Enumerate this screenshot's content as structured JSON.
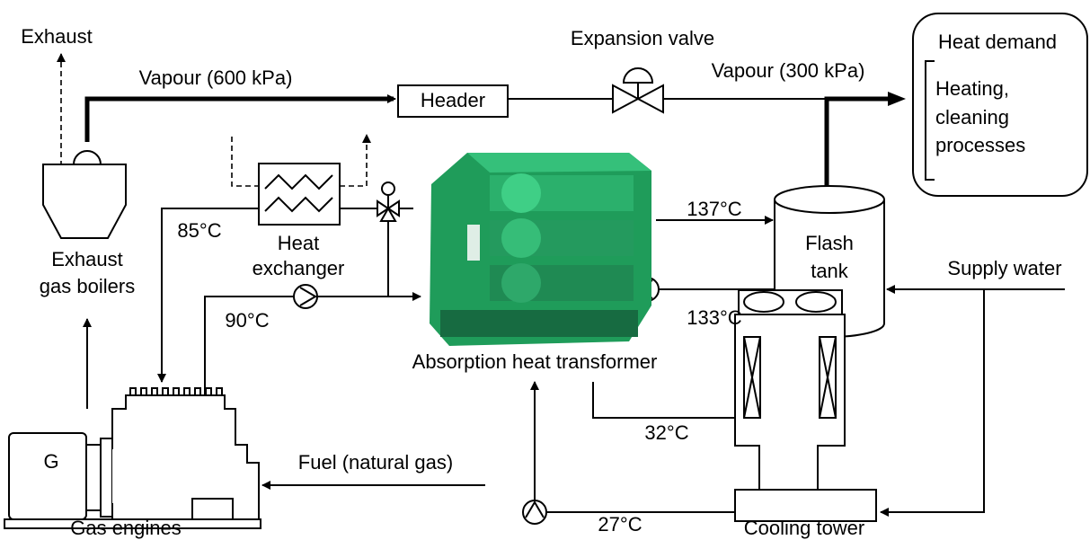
{
  "labels": {
    "exhaust": "Exhaust",
    "vapour_600": "Vapour (600 kPa)",
    "expansion_valve": "Expansion valve",
    "header": "Header",
    "vapour_300": "Vapour (300 kPa)",
    "heat_demand": "Heat demand",
    "heat_demand_processes": [
      "Heating,",
      "cleaning",
      "processes"
    ],
    "temp_85": "85°C",
    "heat_exchanger": [
      "Heat",
      "exchanger"
    ],
    "temp_137": "137°C",
    "flash_tank": [
      "Flash",
      "tank"
    ],
    "exhaust_gas_boilers": [
      "Exhaust",
      "gas boilers"
    ],
    "temp_90": "90°C",
    "temp_133": "133°C",
    "supply_water": "Supply water",
    "absorption_heat_transformer": "Absorption heat transformer",
    "temp_32": "32°C",
    "generator": "G",
    "fuel": "Fuel (natural gas)",
    "temp_27": "27°C",
    "gas_engines": "Gas engines",
    "cooling_tower": "Cooling tower"
  }
}
